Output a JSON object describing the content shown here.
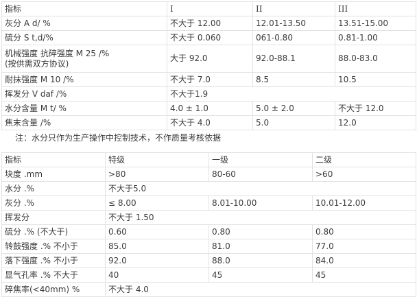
{
  "table1": {
    "header": [
      "指标",
      "I",
      "II",
      "III"
    ],
    "rows": [
      [
        "灰分 A d/ %",
        "不大于 12.00",
        "12.01-13.50",
        "13.51-15.00"
      ],
      [
        "硫分 S t,d/%",
        "不大于 0.060",
        "061-0.80",
        "0.81-1.00"
      ],
      [
        "机械强度 抗碎强度 M 25 /%",
        "(按供需双方协议)",
        "大于 92.0",
        "92.0-88.1",
        "88.0-83.0"
      ],
      [
        "耐抹强度 M 10 /%",
        "不大于 7.0",
        "8.5",
        "10.5"
      ],
      [
        "挥发分 V daf /%",
        "不大于1.9"
      ],
      [
        "水分含量 M t/ %",
        "4.0 ± 1.0",
        "5.0 ± 2.0",
        "不大于 12.0"
      ],
      [
        "焦末含量 /%",
        "不大于 4.0",
        "5.0",
        "12.0"
      ]
    ],
    "note": "注：水分只作为生产操作中控制技术，不作质量考核依据"
  },
  "table2": {
    "header": [
      "指标",
      "特级",
      "一级",
      "二级"
    ],
    "rows": [
      [
        "块度 .mm",
        ">80",
        "80-60",
        ">60"
      ],
      [
        "水分 .%",
        "不大于5.0"
      ],
      [
        "灰分 .%",
        "≤ 8.00",
        "8.01-10.00",
        "10.01-12.00"
      ],
      [
        "挥发分",
        "不大于 1.50"
      ],
      [
        "硫分 .% (不大于)",
        "0.60",
        "0.80",
        "0.80"
      ],
      [
        "转鼓强度 .% 不小于",
        "85.0",
        "81.0",
        "77.0"
      ],
      [
        "落下强度 .% 不小于",
        "92.0",
        "88.0",
        "84.0"
      ],
      [
        "显气孔率 .% 不大于",
        "40",
        "45",
        "45"
      ],
      [
        "碎焦率(<40mm) %",
        "不大于 4.0"
      ]
    ]
  }
}
